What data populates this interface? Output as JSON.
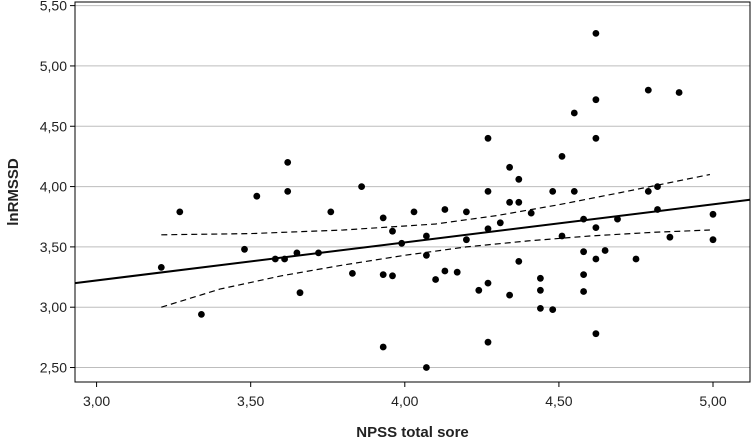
{
  "chart_data": {
    "type": "scatter",
    "xlabel": "NPSS total sore",
    "ylabel": "lnRMSSD",
    "xlim": [
      2.93,
      5.12
    ],
    "ylim": [
      2.38,
      5.53
    ],
    "xticks": [
      3.0,
      3.5,
      4.0,
      4.5,
      5.0
    ],
    "yticks": [
      2.5,
      3.0,
      3.5,
      4.0,
      4.5,
      5.0,
      5.5
    ],
    "xtick_labels": [
      "3,00",
      "3,50",
      "4,00",
      "4,50",
      "5,00"
    ],
    "ytick_labels": [
      "2,50",
      "3,00",
      "3,50",
      "4,00",
      "4,50",
      "5,00",
      "5,50"
    ],
    "grid": "horizontal",
    "colors": {
      "points": "#000000",
      "lines": "#000000",
      "grid": "#bdbdbd"
    },
    "points": [
      [
        3.21,
        3.33
      ],
      [
        3.27,
        3.79
      ],
      [
        3.34,
        2.94
      ],
      [
        3.48,
        3.48
      ],
      [
        3.52,
        3.92
      ],
      [
        3.58,
        3.4
      ],
      [
        3.61,
        3.4
      ],
      [
        3.62,
        3.96
      ],
      [
        3.62,
        4.2
      ],
      [
        3.65,
        3.45
      ],
      [
        3.66,
        3.12
      ],
      [
        3.72,
        3.45
      ],
      [
        3.76,
        3.79
      ],
      [
        3.86,
        4.0
      ],
      [
        3.83,
        3.28
      ],
      [
        3.93,
        3.27
      ],
      [
        3.93,
        3.74
      ],
      [
        3.93,
        2.67
      ],
      [
        3.96,
        3.26
      ],
      [
        3.96,
        3.63
      ],
      [
        3.99,
        3.53
      ],
      [
        4.03,
        3.79
      ],
      [
        4.07,
        2.5
      ],
      [
        4.07,
        3.43
      ],
      [
        4.07,
        3.59
      ],
      [
        4.1,
        3.23
      ],
      [
        4.13,
        3.3
      ],
      [
        4.13,
        3.81
      ],
      [
        4.17,
        3.29
      ],
      [
        4.2,
        3.79
      ],
      [
        4.2,
        3.56
      ],
      [
        4.24,
        3.14
      ],
      [
        4.27,
        4.4
      ],
      [
        4.27,
        3.96
      ],
      [
        4.27,
        3.65
      ],
      [
        4.27,
        3.2
      ],
      [
        4.27,
        2.71
      ],
      [
        4.31,
        3.7
      ],
      [
        4.34,
        4.16
      ],
      [
        4.34,
        3.87
      ],
      [
        4.34,
        3.1
      ],
      [
        4.37,
        4.06
      ],
      [
        4.37,
        3.87
      ],
      [
        4.37,
        3.38
      ],
      [
        4.41,
        3.78
      ],
      [
        4.44,
        3.24
      ],
      [
        4.44,
        3.14
      ],
      [
        4.44,
        2.99
      ],
      [
        4.48,
        3.96
      ],
      [
        4.48,
        2.98
      ],
      [
        4.51,
        4.25
      ],
      [
        4.51,
        3.59
      ],
      [
        4.55,
        4.61
      ],
      [
        4.55,
        3.96
      ],
      [
        4.58,
        3.73
      ],
      [
        4.58,
        3.46
      ],
      [
        4.58,
        3.27
      ],
      [
        4.58,
        3.13
      ],
      [
        4.62,
        5.27
      ],
      [
        4.62,
        4.72
      ],
      [
        4.62,
        4.4
      ],
      [
        4.62,
        3.4
      ],
      [
        4.62,
        2.78
      ],
      [
        4.62,
        3.66
      ],
      [
        4.65,
        3.47
      ],
      [
        4.69,
        3.73
      ],
      [
        4.75,
        3.4
      ],
      [
        4.79,
        3.96
      ],
      [
        4.79,
        4.8
      ],
      [
        4.82,
        4.0
      ],
      [
        4.82,
        3.81
      ],
      [
        4.86,
        3.58
      ],
      [
        4.89,
        4.78
      ],
      [
        5.0,
        3.77
      ],
      [
        5.0,
        3.56
      ]
    ],
    "fit_line": {
      "x": [
        2.93,
        5.12
      ],
      "y": [
        3.2,
        3.89
      ]
    },
    "ci_upper": {
      "x": [
        3.21,
        3.5,
        3.8,
        4.1,
        4.3,
        4.5,
        4.7,
        4.99
      ],
      "y": [
        3.6,
        3.61,
        3.64,
        3.69,
        3.76,
        3.85,
        3.95,
        4.1
      ]
    },
    "ci_lower": {
      "x": [
        3.21,
        3.4,
        3.6,
        3.8,
        4.0,
        4.2,
        4.4,
        4.6,
        4.8,
        4.99
      ],
      "y": [
        3.0,
        3.15,
        3.26,
        3.35,
        3.43,
        3.5,
        3.55,
        3.59,
        3.62,
        3.64
      ]
    }
  }
}
